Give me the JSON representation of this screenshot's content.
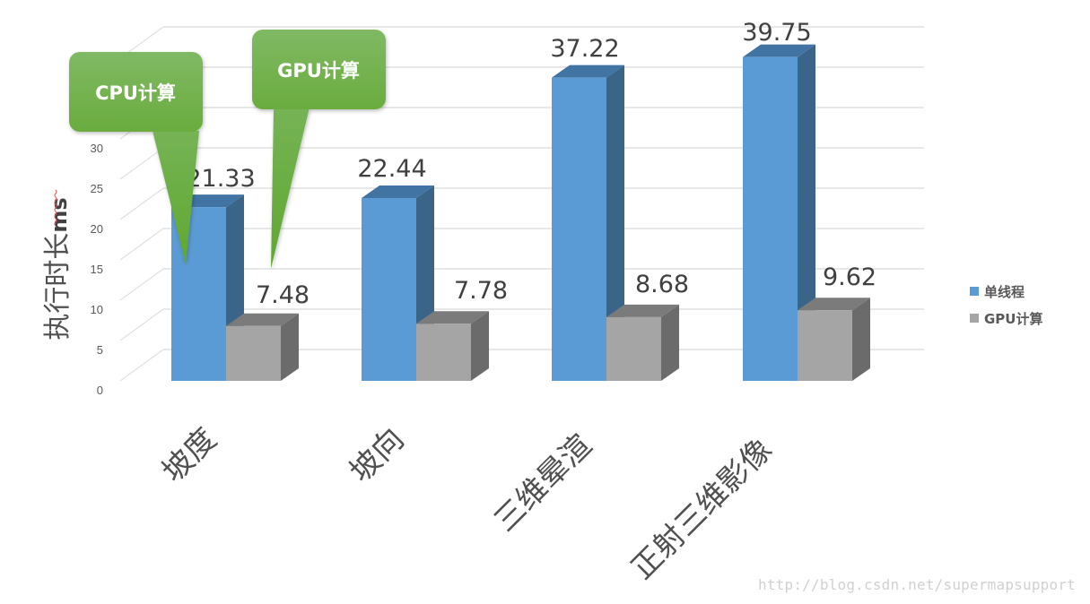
{
  "chart_data": {
    "type": "bar",
    "subtype": "3d-clustered-column",
    "title": "",
    "xlabel": "",
    "ylabel": "执行时长ms",
    "ylim": [
      0,
      40
    ],
    "yticks": [
      0,
      5,
      10,
      15,
      20,
      25,
      30
    ],
    "grid": true,
    "legend_position": "right",
    "categories": [
      "坡度",
      "坡向",
      "三维晕渲",
      "正射三维影像"
    ],
    "series": [
      {
        "name": "单线程",
        "color": "#5b9bd5",
        "values": [
          21.33,
          22.44,
          37.22,
          39.75
        ]
      },
      {
        "name": "GPU计算",
        "color": "#a5a5a5",
        "values": [
          7.48,
          7.78,
          8.68,
          9.62
        ]
      }
    ],
    "annotations": [
      {
        "text": "CPU计算",
        "type": "callout",
        "points_to": "坡度 / 单线程"
      },
      {
        "text": "GPU计算",
        "type": "callout",
        "points_to": "坡度 / GPU计算"
      }
    ]
  },
  "axis": {
    "ylabel": "执行时长",
    "ylabel_unit": "ms",
    "ticks": [
      "0",
      "5",
      "10",
      "15",
      "20",
      "25",
      "30"
    ]
  },
  "labels": {
    "s0": [
      "21.33",
      "22.44",
      "37.22",
      "39.75"
    ],
    "s1": [
      "7.48",
      "7.78",
      "8.68",
      "9.62"
    ]
  },
  "categories": [
    "坡度",
    "坡向",
    "三维晕渲",
    "正射三维影像"
  ],
  "legend": {
    "items": [
      {
        "label": "单线程",
        "color": "#5b9bd5"
      },
      {
        "label": "GPU计算",
        "color": "#a5a5a5"
      }
    ]
  },
  "callouts": {
    "cpu": "CPU计算",
    "gpu": "GPU计算",
    "color": "#6aac3e"
  },
  "watermark": "http://blog.csdn.net/supermapsupport"
}
